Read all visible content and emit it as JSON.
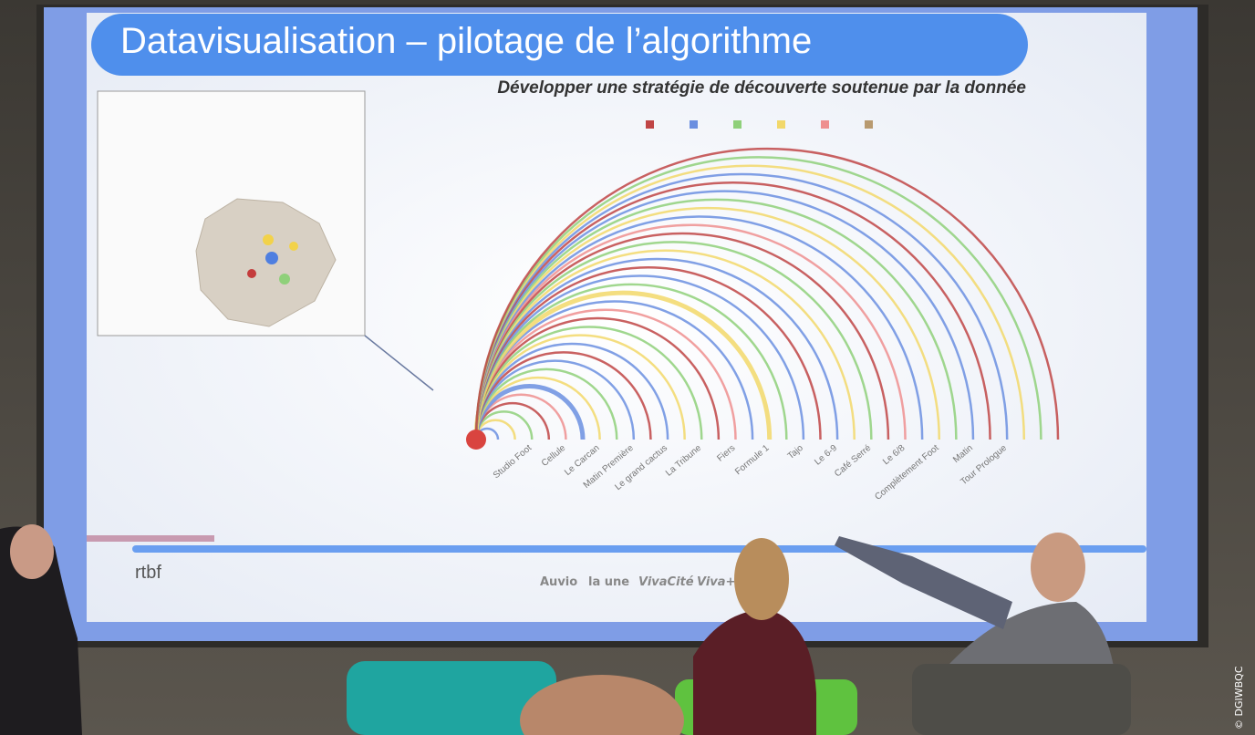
{
  "slide": {
    "title": "Datavisualisation – pilotage de l’algorithme",
    "subtitle": "Développer une stratégie de découverte soutenue par la donnée",
    "arc_labels": [
      "Studio Foot",
      "Cellule",
      "Le Carcan",
      "Matin Première",
      "Le grand cactus",
      "La Tribune",
      "Fiers",
      "Formule 1",
      "Tajo",
      "Le 6-9",
      "Café Serré",
      "Le 6/8",
      "Complètement Foot",
      "Matin",
      "Tour Prologue"
    ],
    "logo": "rtbf",
    "brands": [
      "Auvio",
      "la une",
      "VivaCité",
      "Viva+"
    ]
  },
  "credit": "© DGIWBQC"
}
